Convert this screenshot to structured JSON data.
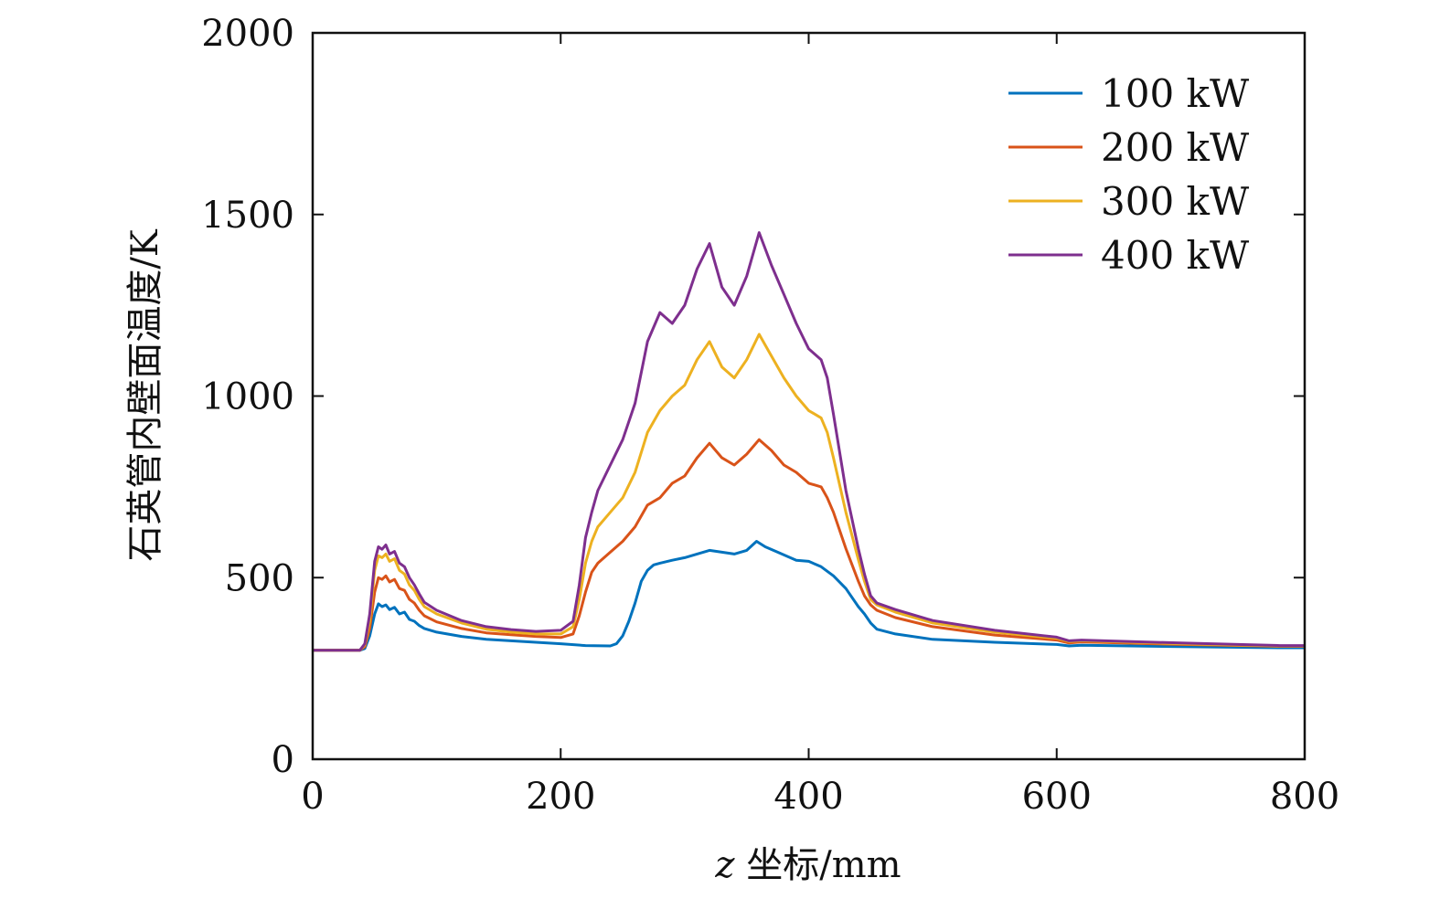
{
  "chart_data": {
    "type": "line",
    "title": "",
    "xlabel_italic": "z",
    "xlabel": " 坐标/mm",
    "ylabel": "石英管内壁面温度/K",
    "xlim": [
      0,
      800
    ],
    "ylim": [
      0,
      2000
    ],
    "xticks": [
      0,
      200,
      400,
      600,
      800
    ],
    "yticks": [
      0,
      500,
      1000,
      1500,
      2000
    ],
    "grid": false,
    "legend_position": "top-right",
    "series": [
      {
        "name": "100 kW",
        "color": "#0072BD",
        "points": [
          [
            0,
            300
          ],
          [
            38,
            300
          ],
          [
            42,
            305
          ],
          [
            46,
            340
          ],
          [
            50,
            400
          ],
          [
            53,
            428
          ],
          [
            56,
            420
          ],
          [
            59,
            425
          ],
          [
            62,
            412
          ],
          [
            66,
            418
          ],
          [
            70,
            400
          ],
          [
            74,
            405
          ],
          [
            78,
            385
          ],
          [
            82,
            380
          ],
          [
            86,
            368
          ],
          [
            90,
            360
          ],
          [
            100,
            350
          ],
          [
            120,
            338
          ],
          [
            140,
            330
          ],
          [
            160,
            326
          ],
          [
            180,
            322
          ],
          [
            200,
            318
          ],
          [
            220,
            313
          ],
          [
            240,
            312
          ],
          [
            245,
            318
          ],
          [
            250,
            340
          ],
          [
            255,
            380
          ],
          [
            260,
            430
          ],
          [
            265,
            490
          ],
          [
            270,
            520
          ],
          [
            275,
            535
          ],
          [
            280,
            540
          ],
          [
            290,
            548
          ],
          [
            300,
            555
          ],
          [
            310,
            565
          ],
          [
            320,
            575
          ],
          [
            330,
            570
          ],
          [
            340,
            565
          ],
          [
            350,
            575
          ],
          [
            358,
            600
          ],
          [
            365,
            585
          ],
          [
            375,
            570
          ],
          [
            390,
            548
          ],
          [
            400,
            545
          ],
          [
            410,
            530
          ],
          [
            420,
            505
          ],
          [
            430,
            470
          ],
          [
            440,
            420
          ],
          [
            445,
            400
          ],
          [
            450,
            375
          ],
          [
            455,
            358
          ],
          [
            470,
            345
          ],
          [
            500,
            330
          ],
          [
            550,
            322
          ],
          [
            600,
            316
          ],
          [
            610,
            312
          ],
          [
            620,
            314
          ],
          [
            700,
            310
          ],
          [
            780,
            307
          ],
          [
            800,
            307
          ]
        ]
      },
      {
        "name": "200 kW",
        "color": "#D95319",
        "points": [
          [
            0,
            300
          ],
          [
            38,
            300
          ],
          [
            42,
            310
          ],
          [
            46,
            360
          ],
          [
            50,
            460
          ],
          [
            53,
            500
          ],
          [
            56,
            495
          ],
          [
            59,
            505
          ],
          [
            62,
            488
          ],
          [
            66,
            495
          ],
          [
            70,
            470
          ],
          [
            74,
            465
          ],
          [
            78,
            440
          ],
          [
            82,
            430
          ],
          [
            86,
            410
          ],
          [
            90,
            395
          ],
          [
            100,
            378
          ],
          [
            120,
            360
          ],
          [
            140,
            348
          ],
          [
            160,
            343
          ],
          [
            180,
            338
          ],
          [
            200,
            335
          ],
          [
            210,
            345
          ],
          [
            215,
            395
          ],
          [
            220,
            460
          ],
          [
            225,
            515
          ],
          [
            230,
            540
          ],
          [
            240,
            570
          ],
          [
            250,
            600
          ],
          [
            260,
            640
          ],
          [
            270,
            700
          ],
          [
            280,
            720
          ],
          [
            290,
            760
          ],
          [
            300,
            780
          ],
          [
            310,
            830
          ],
          [
            320,
            870
          ],
          [
            330,
            830
          ],
          [
            340,
            810
          ],
          [
            350,
            840
          ],
          [
            360,
            880
          ],
          [
            370,
            850
          ],
          [
            380,
            810
          ],
          [
            390,
            790
          ],
          [
            400,
            760
          ],
          [
            410,
            750
          ],
          [
            415,
            720
          ],
          [
            420,
            680
          ],
          [
            430,
            580
          ],
          [
            440,
            490
          ],
          [
            445,
            450
          ],
          [
            450,
            425
          ],
          [
            455,
            410
          ],
          [
            470,
            390
          ],
          [
            500,
            365
          ],
          [
            550,
            342
          ],
          [
            600,
            328
          ],
          [
            610,
            320
          ],
          [
            620,
            323
          ],
          [
            700,
            316
          ],
          [
            780,
            311
          ],
          [
            800,
            311
          ]
        ]
      },
      {
        "name": "300 kW",
        "color": "#EDB120",
        "points": [
          [
            0,
            300
          ],
          [
            38,
            300
          ],
          [
            42,
            315
          ],
          [
            46,
            380
          ],
          [
            50,
            520
          ],
          [
            53,
            560
          ],
          [
            56,
            555
          ],
          [
            59,
            565
          ],
          [
            62,
            545
          ],
          [
            66,
            552
          ],
          [
            70,
            520
          ],
          [
            74,
            510
          ],
          [
            78,
            480
          ],
          [
            82,
            465
          ],
          [
            86,
            440
          ],
          [
            90,
            420
          ],
          [
            100,
            400
          ],
          [
            120,
            375
          ],
          [
            140,
            358
          ],
          [
            160,
            350
          ],
          [
            180,
            345
          ],
          [
            200,
            345
          ],
          [
            210,
            365
          ],
          [
            215,
            440
          ],
          [
            220,
            540
          ],
          [
            225,
            600
          ],
          [
            230,
            640
          ],
          [
            240,
            680
          ],
          [
            250,
            720
          ],
          [
            260,
            790
          ],
          [
            270,
            900
          ],
          [
            280,
            960
          ],
          [
            290,
            1000
          ],
          [
            300,
            1030
          ],
          [
            310,
            1100
          ],
          [
            320,
            1150
          ],
          [
            330,
            1080
          ],
          [
            340,
            1050
          ],
          [
            350,
            1100
          ],
          [
            360,
            1170
          ],
          [
            370,
            1110
          ],
          [
            380,
            1050
          ],
          [
            390,
            1000
          ],
          [
            400,
            960
          ],
          [
            410,
            940
          ],
          [
            415,
            900
          ],
          [
            420,
            830
          ],
          [
            430,
            680
          ],
          [
            440,
            550
          ],
          [
            445,
            490
          ],
          [
            450,
            440
          ],
          [
            455,
            425
          ],
          [
            470,
            405
          ],
          [
            500,
            375
          ],
          [
            550,
            350
          ],
          [
            600,
            333
          ],
          [
            610,
            324
          ],
          [
            620,
            326
          ],
          [
            700,
            318
          ],
          [
            780,
            312
          ],
          [
            800,
            312
          ]
        ]
      },
      {
        "name": "400 kW",
        "color": "#7E2F8E",
        "points": [
          [
            0,
            300
          ],
          [
            38,
            300
          ],
          [
            42,
            318
          ],
          [
            46,
            400
          ],
          [
            50,
            545
          ],
          [
            53,
            585
          ],
          [
            56,
            578
          ],
          [
            59,
            590
          ],
          [
            62,
            565
          ],
          [
            66,
            572
          ],
          [
            70,
            540
          ],
          [
            74,
            530
          ],
          [
            78,
            500
          ],
          [
            82,
            480
          ],
          [
            86,
            455
          ],
          [
            90,
            432
          ],
          [
            100,
            410
          ],
          [
            120,
            382
          ],
          [
            140,
            365
          ],
          [
            160,
            357
          ],
          [
            180,
            352
          ],
          [
            200,
            355
          ],
          [
            210,
            380
          ],
          [
            215,
            480
          ],
          [
            220,
            610
          ],
          [
            225,
            680
          ],
          [
            230,
            740
          ],
          [
            240,
            810
          ],
          [
            250,
            880
          ],
          [
            260,
            980
          ],
          [
            270,
            1150
          ],
          [
            280,
            1230
          ],
          [
            290,
            1200
          ],
          [
            300,
            1250
          ],
          [
            310,
            1350
          ],
          [
            320,
            1420
          ],
          [
            330,
            1300
          ],
          [
            340,
            1250
          ],
          [
            350,
            1330
          ],
          [
            360,
            1450
          ],
          [
            370,
            1360
          ],
          [
            380,
            1280
          ],
          [
            390,
            1200
          ],
          [
            400,
            1130
          ],
          [
            410,
            1100
          ],
          [
            415,
            1050
          ],
          [
            420,
            950
          ],
          [
            430,
            740
          ],
          [
            440,
            580
          ],
          [
            445,
            510
          ],
          [
            450,
            450
          ],
          [
            455,
            430
          ],
          [
            470,
            412
          ],
          [
            500,
            382
          ],
          [
            550,
            355
          ],
          [
            600,
            336
          ],
          [
            610,
            326
          ],
          [
            620,
            328
          ],
          [
            700,
            320
          ],
          [
            780,
            313
          ],
          [
            800,
            313
          ]
        ]
      }
    ]
  }
}
